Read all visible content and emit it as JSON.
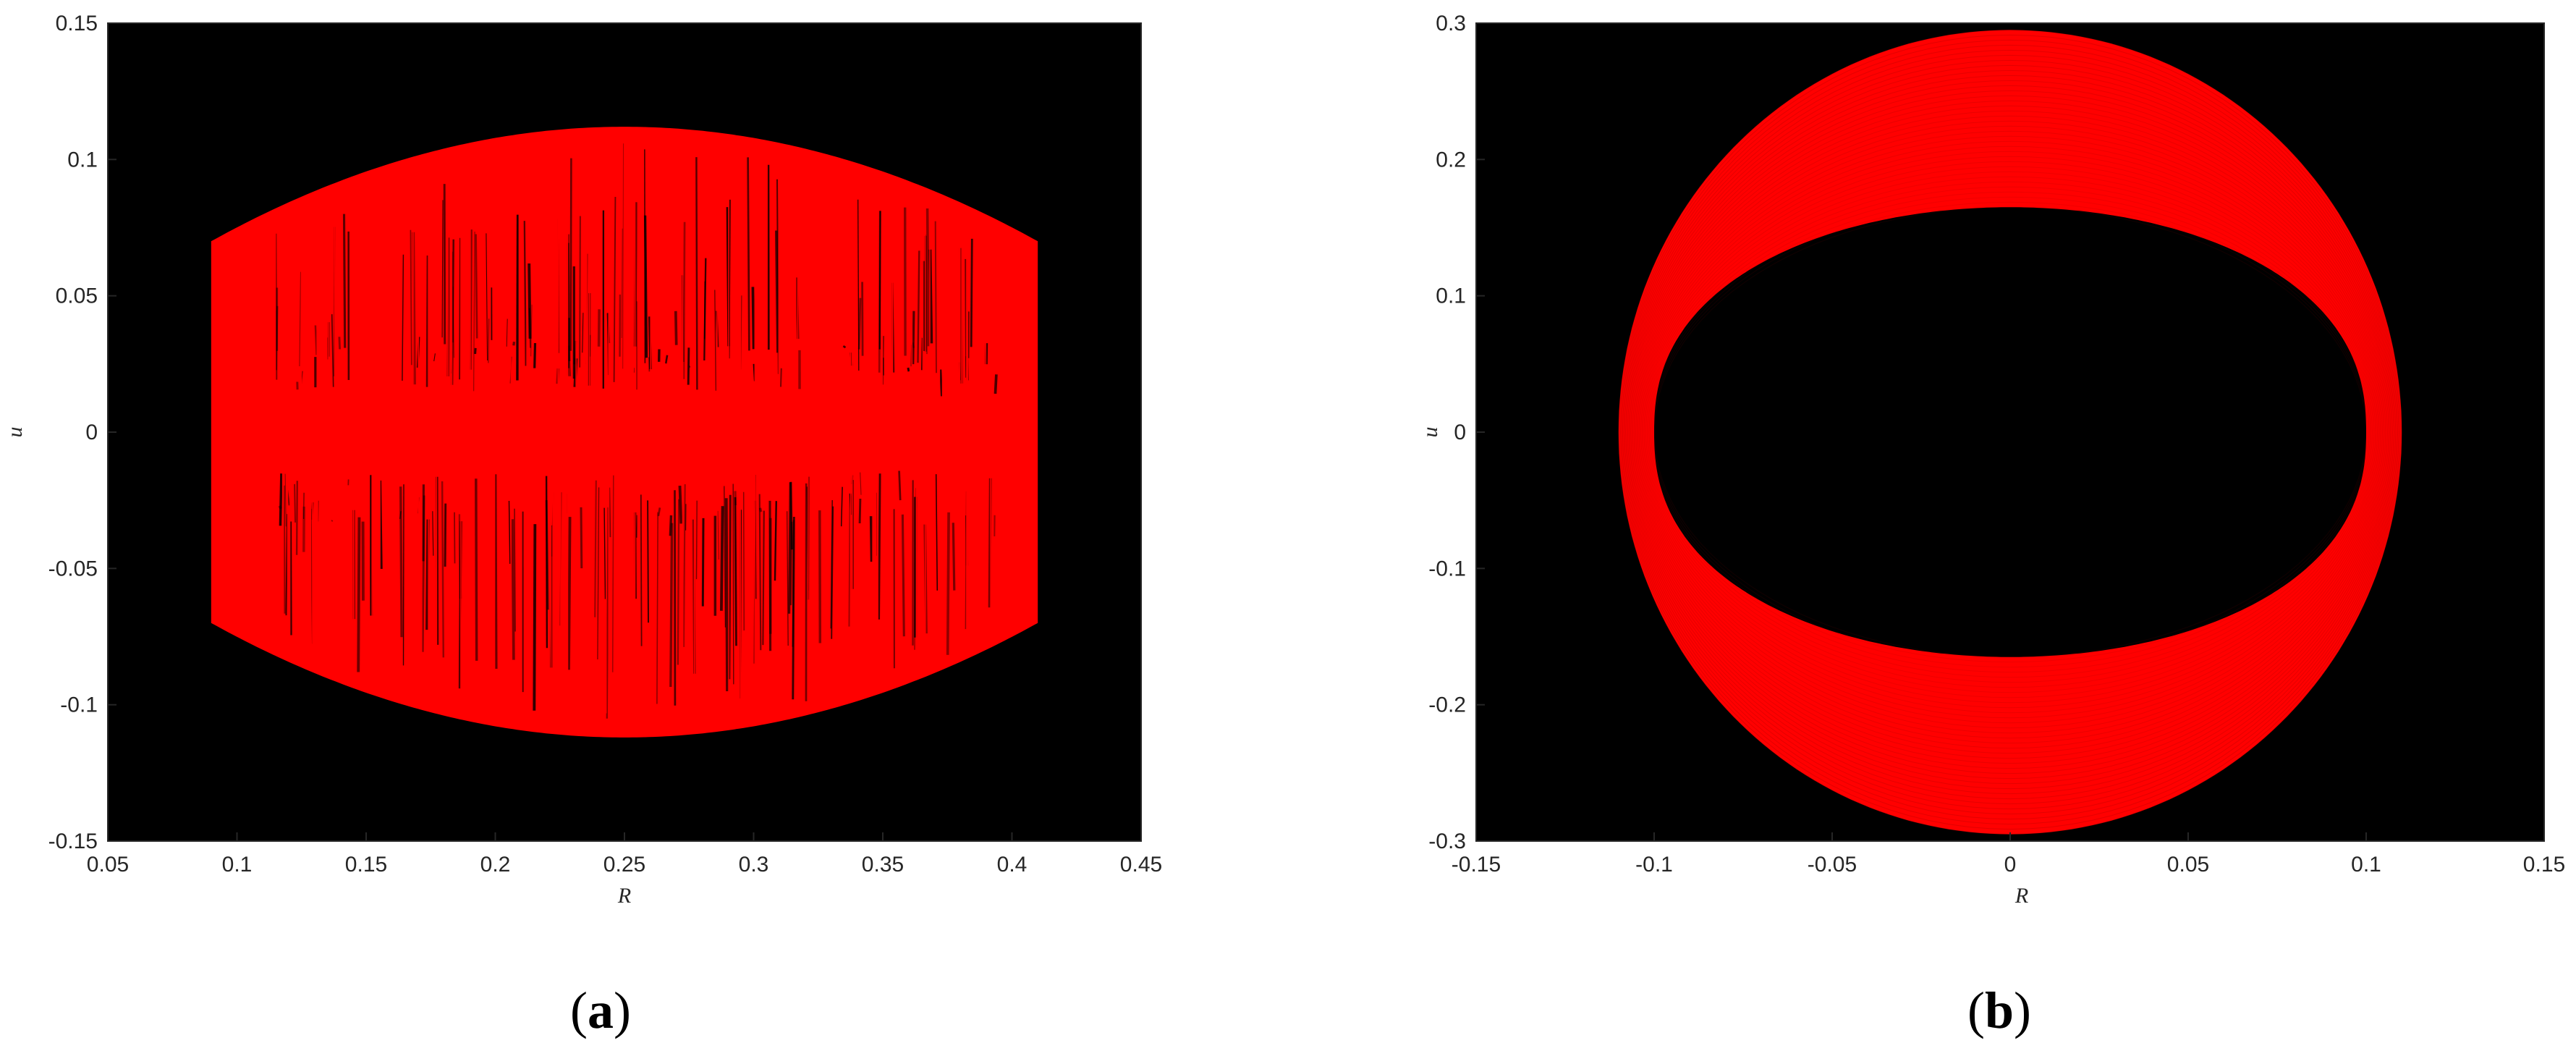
{
  "chart_data": [
    {
      "type": "line",
      "caption": "a",
      "xlabel": "R",
      "ylabel": "u",
      "xlim": [
        0.05,
        0.45
      ],
      "ylim": [
        -0.15,
        0.15
      ],
      "xticks": [
        "0.05",
        "0.1",
        "0.15",
        "0.2",
        "0.25",
        "0.3",
        "0.35",
        "0.4",
        "0.45"
      ],
      "yticks": [
        "0.15",
        "0.1",
        "0.05",
        "0",
        "-0.05",
        "-0.1",
        "-0.15"
      ],
      "background": "#000000",
      "line_color": "#ff0000",
      "series": [
        {
          "description_points": {
            "R_min": 0.09,
            "R_max": 0.41,
            "u_max_center": 0.112,
            "u_max_edges": 0.07,
            "u_min_center": -0.112,
            "u_min_edges": -0.07
          }
        }
      ]
    },
    {
      "type": "line",
      "caption": "b",
      "xlabel": "R",
      "ylabel": "u",
      "xlim": [
        -0.15,
        0.15
      ],
      "ylim": [
        -0.3,
        0.3
      ],
      "xticks": [
        "-0.15",
        "-0.1",
        "-0.05",
        "0",
        "0.05",
        "0.1",
        "0.15"
      ],
      "yticks": [
        "0.3",
        "0.2",
        "0.1",
        "0",
        "-0.1",
        "-0.2",
        "-0.3"
      ],
      "background": "#000000",
      "line_color": "#ff0000",
      "series": [
        {
          "outer_ring": {
            "R_amplitude": 0.11,
            "u_amplitude": 0.295
          },
          "inner_ring": {
            "R_amplitude": 0.1,
            "u_amplitude": 0.165
          }
        }
      ]
    }
  ],
  "captions": {
    "a_open": "(",
    "a_letter": "a",
    "a_close": ")",
    "b_open": "(",
    "b_letter": "b",
    "b_close": ")"
  }
}
